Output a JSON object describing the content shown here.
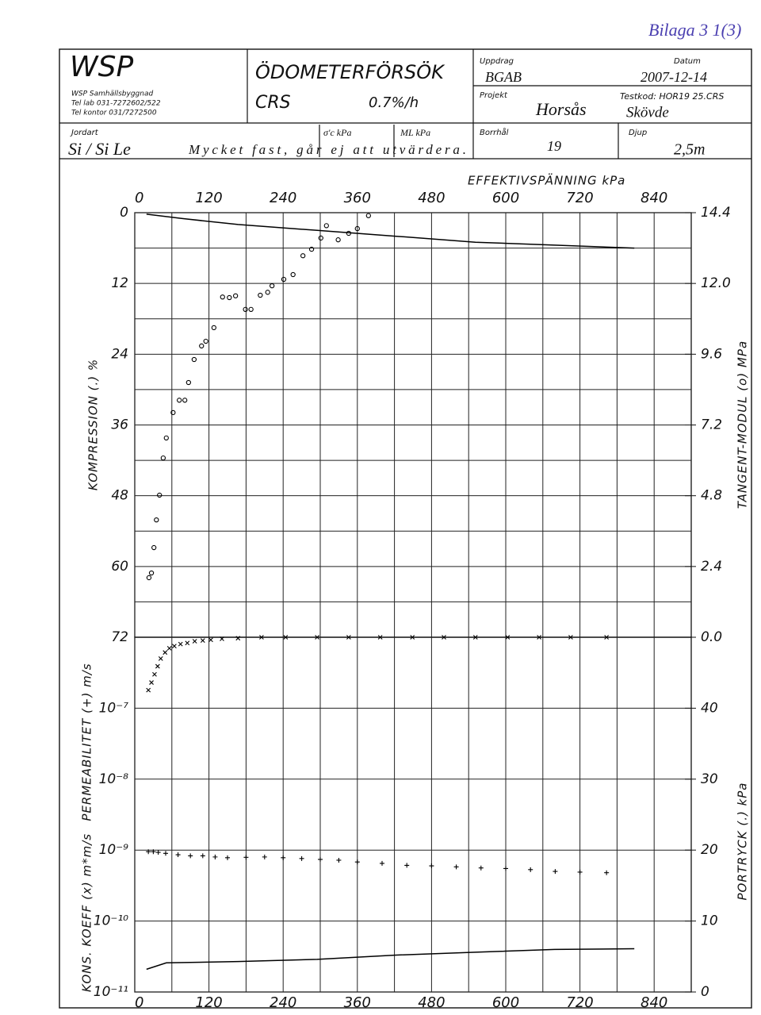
{
  "header": {
    "attachment": "Bilaga 3 1(3)",
    "company": "WSP",
    "department": "WSP Samhällsbyggnad",
    "tel_lab": "Tel lab 031-7272602/522",
    "tel_office": "Tel kontor 031/7272500",
    "test": "ÖDOMETERFÖRSÖK",
    "method": "CRS",
    "rate": "0.7%/h",
    "uppdrag": {
      "label": "Uppdrag",
      "value": "BGAB"
    },
    "datum": {
      "label": "Datum",
      "value": "2007-12-14"
    },
    "projekt": {
      "label": "Projekt",
      "value": "Horsås"
    },
    "testkod": {
      "label": "Testkod: HOR19 25.CRS",
      "value": "Skövde"
    },
    "jordart": {
      "label": "Jordart",
      "value": "Si / Si Le",
      "note": "Mycket fast, går ej att utvärdera.",
      "sigma_label": "σ'c kPa",
      "ml_label": "ML kPa"
    },
    "borrhal": {
      "label": "Borrhål",
      "value": "19"
    },
    "djup": {
      "label": "Djup",
      "value": "2,5m"
    }
  },
  "chart_data": [
    {
      "type": "scatter",
      "xlabel": "EFFEKTIVSPÄNNING kPa",
      "ylabel": "KOMPRESSION (.) %",
      "y2label": "TANGENT-MODUL (o) MPa",
      "xtick_side": "top",
      "xlim": [
        0,
        900
      ],
      "xticks": [
        0,
        120,
        240,
        360,
        480,
        600,
        720,
        840
      ],
      "minor_xticks": [
        60,
        180,
        300,
        420,
        540,
        660,
        780
      ],
      "ylim": [
        0,
        72
      ],
      "y_inverted": true,
      "yticks": [
        0,
        12,
        24,
        36,
        48,
        60,
        72
      ],
      "minor_yticks": [
        6,
        18,
        30,
        42,
        54,
        66
      ],
      "y2lim": [
        0,
        14.4
      ],
      "y2ticks": [
        {
          "value": 0,
          "label": "0.0"
        },
        2.4,
        4.8,
        7.2,
        9.6,
        {
          "value": 12,
          "label": "12.0"
        },
        14.4
      ],
      "grid": true,
      "series": [
        {
          "mark": "circle",
          "color": "#000000",
          "x": [
            378,
            310,
            360,
            346,
            301,
            329,
            286,
            272,
            256,
            241,
            222,
            215,
            203,
            163,
            142,
            153,
            179,
            188,
            128,
            115,
            108,
            96,
            87,
            72,
            81,
            62,
            51,
            46,
            40,
            35,
            31,
            27,
            23
          ],
          "values": [
            0.5,
            2.2,
            2.7,
            3.5,
            4.3,
            4.6,
            6.2,
            7.3,
            10.5,
            11.3,
            12.4,
            13.5,
            14.0,
            14.1,
            14.3,
            14.4,
            16.4,
            16.4,
            19.5,
            21.8,
            22.6,
            24.9,
            28.8,
            31.8,
            31.8,
            33.9,
            38.2,
            41.6,
            47.9,
            52.1,
            56.8,
            61.1,
            61.9
          ]
        },
        {
          "mark": "line",
          "axis": "y2",
          "color": "#000000",
          "x": [
            19,
            77,
            167,
            295,
            423,
            551,
            679,
            808
          ],
          "values": [
            14.35,
            14.2,
            14.0,
            13.8,
            13.6,
            13.4,
            13.3,
            13.2
          ]
        }
      ]
    },
    {
      "type": "scatter",
      "ylabel": "PERMEABILITET (+) m/s",
      "ylabel2": "KONS. KOEFF (x) m*m/s",
      "y2label": "PORTRYCK (.) kPa",
      "xtick_side": "bottom",
      "xlim": [
        0,
        900
      ],
      "xticks": [
        0,
        120,
        240,
        360,
        480,
        600,
        720,
        840
      ],
      "minor_xticks": [
        60,
        180,
        300,
        420,
        540,
        660,
        780
      ],
      "log_y": true,
      "ylim": [
        1e-11,
        1e-06
      ],
      "yticks": [
        {
          "value": 1e-11,
          "label": "10⁻¹¹"
        },
        {
          "value": 1e-10,
          "label": "10⁻¹⁰"
        },
        {
          "value": 1e-09,
          "label": "10⁻⁹"
        },
        {
          "value": 1e-08,
          "label": "10⁻⁸"
        },
        {
          "value": 1e-07,
          "label": "10⁻⁷"
        }
      ],
      "y2lim": [
        0,
        50
      ],
      "y2ticks": [
        0,
        10,
        20,
        30,
        40
      ],
      "grid": true,
      "series": [
        {
          "mark": "x",
          "color": "#000000",
          "x": [
            22,
            27,
            32,
            37,
            42,
            49,
            56,
            64,
            74,
            85,
            97,
            110,
            123,
            141,
            167,
            205,
            244,
            295,
            346,
            397,
            449,
            500,
            551,
            603,
            654,
            705,
            763
          ],
          "values": [
            1.8e-07,
            2.3e-07,
            3e-07,
            3.9e-07,
            5e-07,
            6.1e-07,
            7e-07,
            7.5e-07,
            8e-07,
            8.3e-07,
            8.8e-07,
            9e-07,
            9.2e-07,
            9.5e-07,
            9.7e-07,
            1e-06,
            1e-06,
            1e-06,
            1e-06,
            1e-06,
            1e-06,
            1e-06,
            1e-06,
            1e-06,
            1e-06,
            1e-06,
            1e-06
          ]
        },
        {
          "mark": "+",
          "color": "#000000",
          "x": [
            22,
            30,
            38,
            50,
            70,
            90,
            110,
            130,
            150,
            180,
            210,
            240,
            270,
            300,
            330,
            360,
            400,
            440,
            480,
            520,
            560,
            600,
            640,
            680,
            720,
            763
          ],
          "values": [
            9.5e-10,
            9.5e-10,
            9.3e-10,
            9e-10,
            8.6e-10,
            8.3e-10,
            8.3e-10,
            8e-10,
            7.8e-10,
            7.9e-10,
            8e-10,
            7.8e-10,
            7.6e-10,
            7.4e-10,
            7.2e-10,
            6.8e-10,
            6.5e-10,
            6.1e-10,
            6e-10,
            5.8e-10,
            5.6e-10,
            5.5e-10,
            5.3e-10,
            5e-10,
            4.9e-10,
            4.8e-10
          ]
        },
        {
          "mark": "line",
          "axis": "y2",
          "color": "#000000",
          "x": [
            19,
            51,
            167,
            295,
            423,
            551,
            679,
            808
          ],
          "values": [
            3.2,
            4.1,
            4.3,
            4.6,
            5.2,
            5.6,
            6.0,
            6.1
          ]
        }
      ]
    }
  ]
}
